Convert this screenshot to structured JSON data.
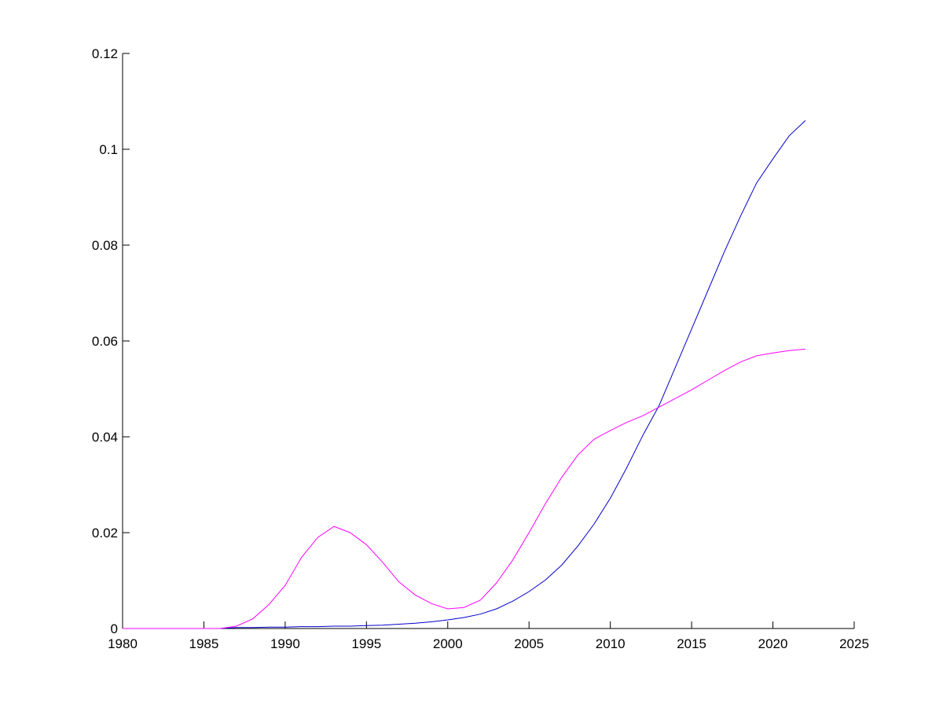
{
  "chart_data": {
    "type": "line",
    "title": "",
    "xlabel": "",
    "ylabel": "",
    "xlim": [
      1980,
      2025
    ],
    "ylim": [
      0,
      0.12
    ],
    "grid": false,
    "x_ticks": [
      "1980",
      "1985",
      "1990",
      "1995",
      "2000",
      "2005",
      "2010",
      "2015",
      "2020",
      "2025"
    ],
    "y_ticks": [
      "0",
      "0.02",
      "0.04",
      "0.06",
      "0.08",
      "0.1",
      "0.12"
    ],
    "x": [
      1980,
      1981,
      1982,
      1983,
      1984,
      1985,
      1986,
      1987,
      1988,
      1989,
      1990,
      1991,
      1992,
      1993,
      1994,
      1995,
      1996,
      1997,
      1998,
      1999,
      2000,
      2001,
      2002,
      2003,
      2004,
      2005,
      2006,
      2007,
      2008,
      2009,
      2010,
      2011,
      2012,
      2013,
      2014,
      2015,
      2016,
      2017,
      2018,
      2019,
      2020,
      2021,
      2022
    ],
    "series": [
      {
        "color": "#0000cc",
        "values": [
          0,
          0,
          0,
          0,
          0,
          0,
          0,
          0.0002,
          0.0002,
          0.0003,
          0.0003,
          0.0004,
          0.0004,
          0.0005,
          0.0005,
          0.0006,
          0.0007,
          0.0009,
          0.0011,
          0.0014,
          0.0018,
          0.0023,
          0.003,
          0.0041,
          0.0057,
          0.0077,
          0.0101,
          0.0132,
          0.0172,
          0.0218,
          0.0272,
          0.0335,
          0.0403,
          0.0465,
          0.0545,
          0.0625,
          0.0705,
          0.0785,
          0.086,
          0.093,
          0.098,
          0.1028,
          0.106
        ]
      },
      {
        "color": "#ff00ff",
        "values": [
          0,
          0,
          0,
          0,
          0,
          0,
          0,
          0.0005,
          0.002,
          0.005,
          0.009,
          0.0148,
          0.019,
          0.0213,
          0.02,
          0.0175,
          0.0138,
          0.0097,
          0.007,
          0.0052,
          0.0041,
          0.0044,
          0.0059,
          0.0095,
          0.0143,
          0.02,
          0.026,
          0.0315,
          0.0362,
          0.0395,
          0.0413,
          0.043,
          0.0444,
          0.0462,
          0.048,
          0.0498,
          0.0518,
          0.0538,
          0.0556,
          0.0569,
          0.0575,
          0.058,
          0.0583
        ]
      }
    ]
  }
}
